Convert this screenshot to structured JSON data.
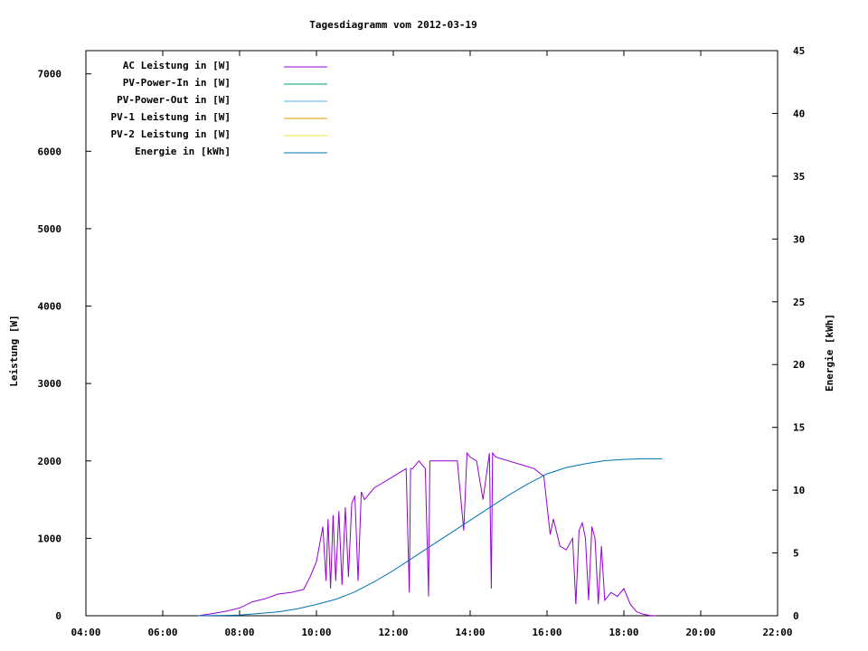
{
  "chart_data": {
    "type": "line",
    "title": "Tagesdiagramm vom 2012-03-19",
    "ylabel": "Leistung [W]",
    "y2label": "Energie [kWh]",
    "xlim": [
      "04:00",
      "22:00"
    ],
    "ylim": [
      0,
      7300
    ],
    "y2lim": [
      0,
      45
    ],
    "xticks": [
      "04:00",
      "06:00",
      "08:00",
      "10:00",
      "12:00",
      "14:00",
      "16:00",
      "18:00",
      "20:00",
      "22:00"
    ],
    "yticks": [
      "0",
      "1000",
      "2000",
      "3000",
      "4000",
      "5000",
      "6000",
      "7000"
    ],
    "y2ticks": [
      "0",
      "5",
      "10",
      "15",
      "20",
      "25",
      "30",
      "35",
      "40",
      "45"
    ],
    "legend_position": "top-left",
    "series": [
      {
        "name": "AC Leistung in [W]",
        "axis": "left",
        "color": "#9400d3",
        "x": [
          "06:55",
          "07:20",
          "07:40",
          "08:00",
          "08:20",
          "08:40",
          "09:00",
          "09:20",
          "09:40",
          "09:50",
          "10:00",
          "10:10",
          "10:15",
          "10:18",
          "10:22",
          "10:26",
          "10:30",
          "10:35",
          "10:40",
          "10:45",
          "10:50",
          "10:55",
          "11:00",
          "11:05",
          "11:10",
          "11:15",
          "11:20",
          "11:25",
          "11:30",
          "11:40",
          "11:50",
          "12:00",
          "12:10",
          "12:20",
          "12:25",
          "12:27",
          "12:30",
          "12:40",
          "12:50",
          "12:55",
          "12:57",
          "13:00",
          "13:20",
          "13:40",
          "13:50",
          "13:55",
          "14:00",
          "14:10",
          "14:20",
          "14:30",
          "14:33",
          "14:35",
          "14:40",
          "15:00",
          "15:20",
          "15:40",
          "15:55",
          "16:05",
          "16:10",
          "16:20",
          "16:30",
          "16:40",
          "16:45",
          "16:50",
          "16:55",
          "17:00",
          "17:05",
          "17:10",
          "17:15",
          "17:20",
          "17:25",
          "17:30",
          "17:40",
          "17:50",
          "18:00",
          "18:10",
          "18:15",
          "18:20",
          "18:30",
          "18:40",
          "18:50"
        ],
        "values": [
          0,
          30,
          60,
          100,
          180,
          220,
          280,
          300,
          340,
          500,
          700,
          1150,
          450,
          1250,
          350,
          1300,
          450,
          1350,
          400,
          1400,
          500,
          1450,
          1550,
          450,
          1600,
          1500,
          1550,
          1600,
          1650,
          1700,
          1750,
          1800,
          1850,
          1900,
          300,
          1900,
          1900,
          2000,
          1900,
          250,
          2000,
          2000,
          2000,
          2000,
          1100,
          2100,
          2050,
          2000,
          1500,
          2100,
          350,
          2100,
          2050,
          2000,
          1950,
          1900,
          1800,
          1050,
          1250,
          900,
          850,
          1000,
          150,
          1100,
          1200,
          1000,
          200,
          1150,
          1000,
          150,
          900,
          200,
          300,
          250,
          350,
          150,
          100,
          50,
          20,
          5,
          0
        ]
      },
      {
        "name": "PV-Power-In in [W]",
        "axis": "left",
        "color": "#009e73",
        "x": [],
        "values": []
      },
      {
        "name": "PV-Power-Out in [W]",
        "axis": "left",
        "color": "#56b4e9",
        "x": [],
        "values": []
      },
      {
        "name": "PV-1 Leistung in [W]",
        "axis": "left",
        "color": "#e69f00",
        "x": [],
        "values": []
      },
      {
        "name": "PV-2 Leistung in [W]",
        "axis": "left",
        "color": "#f0e442",
        "x": [],
        "values": []
      },
      {
        "name": "Energie in [kWh]",
        "axis": "right",
        "color": "#0072b2",
        "x": [
          "06:55",
          "08:00",
          "09:00",
          "09:30",
          "10:00",
          "10:30",
          "11:00",
          "11:30",
          "12:00",
          "12:30",
          "13:00",
          "13:30",
          "14:00",
          "14:30",
          "15:00",
          "15:30",
          "16:00",
          "16:30",
          "17:00",
          "17:30",
          "18:00",
          "18:30",
          "19:00"
        ],
        "values": [
          0,
          0.05,
          0.3,
          0.55,
          0.9,
          1.3,
          1.9,
          2.7,
          3.6,
          4.6,
          5.6,
          6.6,
          7.6,
          8.6,
          9.6,
          10.5,
          11.3,
          11.8,
          12.1,
          12.35,
          12.45,
          12.5,
          12.5
        ]
      }
    ]
  }
}
